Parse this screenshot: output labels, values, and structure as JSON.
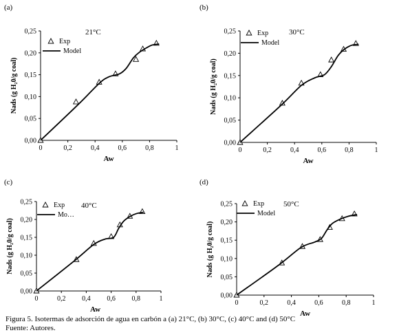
{
  "figure": {
    "caption": "Figura 5. Isotermas de adsorción de agua en carbón a (a) 21°C, (b) 30°C, (c) 40°C and (d) 50°C",
    "source": "Fuente: Autores."
  },
  "chart_data": [
    {
      "panel": "(a)",
      "type": "line",
      "temperature": "21°C",
      "xlabel": "Aw",
      "ylabel": "Nads (g H₂0/g coal)",
      "xlim": [
        0,
        1
      ],
      "ylim": [
        0,
        0.25
      ],
      "xticks": [
        "0",
        "0,2",
        "0,4",
        "0,6",
        "0,8",
        "1"
      ],
      "yticks": [
        "0,00",
        "0,05",
        "0,10",
        "0,15",
        "0,20",
        "0,25"
      ],
      "legend": [
        "Exp",
        "Model"
      ],
      "legend_placement": "top-left",
      "series": [
        {
          "name": "Exp",
          "kind": "marker-triangle",
          "x": [
            0.0,
            0.26,
            0.43,
            0.55,
            0.7,
            0.75,
            0.85
          ],
          "y": [
            0.0,
            0.088,
            0.133,
            0.152,
            0.185,
            0.209,
            0.222
          ]
        },
        {
          "name": "Model",
          "kind": "line",
          "x": [
            0.0,
            0.28,
            0.43,
            0.5,
            0.58,
            0.63,
            0.68,
            0.72,
            0.77,
            0.82,
            0.87
          ],
          "y": [
            0.0,
            0.083,
            0.13,
            0.145,
            0.152,
            0.165,
            0.188,
            0.2,
            0.21,
            0.218,
            0.22
          ]
        }
      ]
    },
    {
      "panel": "(b)",
      "type": "line",
      "temperature": "30°C",
      "xlabel": "Aw",
      "ylabel": "Nads (g H₂0/g coal)",
      "xlim": [
        0,
        1
      ],
      "ylim": [
        0,
        0.25
      ],
      "xticks": [
        "0",
        "0,2",
        "0,4",
        "0,6",
        "0,8",
        "1"
      ],
      "yticks": [
        "0,00",
        "0,05",
        "0,10",
        "0,15",
        "0,20",
        "0,25"
      ],
      "legend": [
        "Exp",
        "Model"
      ],
      "legend_placement": "top-left",
      "series": [
        {
          "name": "Exp",
          "kind": "marker-triangle",
          "x": [
            0.0,
            0.31,
            0.45,
            0.59,
            0.67,
            0.76,
            0.85
          ],
          "y": [
            0.0,
            0.088,
            0.133,
            0.152,
            0.185,
            0.209,
            0.222
          ]
        },
        {
          "name": "Model",
          "kind": "line",
          "x": [
            0.0,
            0.3,
            0.45,
            0.55,
            0.62,
            0.67,
            0.72,
            0.77,
            0.82,
            0.87
          ],
          "y": [
            0.0,
            0.083,
            0.128,
            0.145,
            0.152,
            0.17,
            0.195,
            0.21,
            0.218,
            0.22
          ]
        }
      ]
    },
    {
      "panel": "(c)",
      "type": "line",
      "temperature": "40°C",
      "xlabel": "Aw",
      "ylabel": "Nads (g H₂0/g coal)",
      "xlim": [
        0,
        1
      ],
      "ylim": [
        0,
        0.25
      ],
      "xticks": [
        "0",
        "0,2",
        "0,4",
        "0,6",
        "0,8",
        "1"
      ],
      "yticks": [
        "0,00",
        "0,05",
        "0,10",
        "0,15",
        "0,20",
        "0,25"
      ],
      "legend": [
        "Exp",
        "Mo…"
      ],
      "legend_placement": "top-left",
      "series": [
        {
          "name": "Exp",
          "kind": "marker-triangle",
          "x": [
            0.0,
            0.32,
            0.46,
            0.6,
            0.67,
            0.75,
            0.85
          ],
          "y": [
            0.0,
            0.088,
            0.133,
            0.152,
            0.185,
            0.209,
            0.222
          ]
        },
        {
          "name": "Model",
          "kind": "line",
          "x": [
            0.0,
            0.3,
            0.46,
            0.55,
            0.62,
            0.66,
            0.7,
            0.75,
            0.8,
            0.86
          ],
          "y": [
            0.0,
            0.083,
            0.13,
            0.145,
            0.15,
            0.175,
            0.195,
            0.208,
            0.216,
            0.22
          ]
        }
      ]
    },
    {
      "panel": "(d)",
      "type": "line",
      "temperature": "50°C",
      "xlabel": "Aw",
      "ylabel": "Nads (g H₂0/g coal)",
      "xlim": [
        0,
        1
      ],
      "ylim": [
        0,
        0.25
      ],
      "xticks": [
        "0",
        "0,2",
        "0,4",
        "0,6",
        "0,8",
        "1"
      ],
      "yticks": [
        "0,00",
        "0,05",
        "0,10",
        "0,15",
        "0,20",
        "0,25"
      ],
      "legend": [
        "Exp",
        "Model"
      ],
      "legend_placement": "top-left",
      "series": [
        {
          "name": "Exp",
          "kind": "marker-triangle",
          "x": [
            0.0,
            0.33,
            0.48,
            0.61,
            0.68,
            0.77,
            0.86
          ],
          "y": [
            0.0,
            0.088,
            0.133,
            0.152,
            0.185,
            0.209,
            0.222
          ]
        },
        {
          "name": "Model",
          "kind": "line",
          "x": [
            0.0,
            0.3,
            0.47,
            0.57,
            0.62,
            0.66,
            0.7,
            0.76,
            0.82,
            0.88
          ],
          "y": [
            0.0,
            0.08,
            0.13,
            0.145,
            0.155,
            0.178,
            0.196,
            0.208,
            0.216,
            0.22
          ]
        }
      ]
    }
  ]
}
